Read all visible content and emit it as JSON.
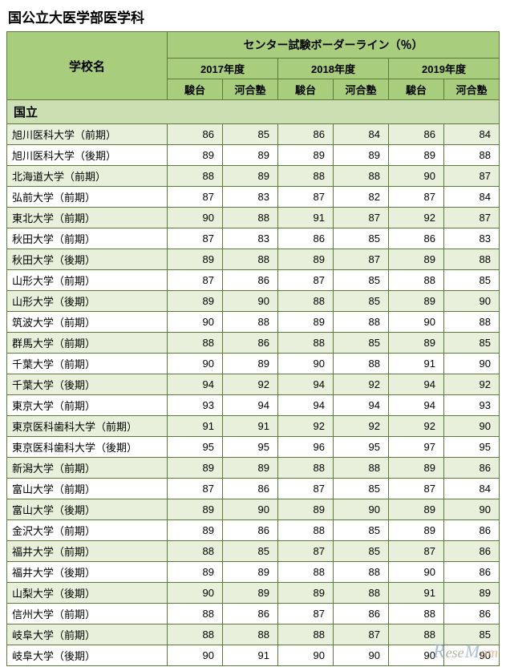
{
  "title": "国公立大医学部医学科",
  "headers": {
    "school": "学校名",
    "main": "センター試験ボーダーライン（％）",
    "years": [
      "2017年度",
      "2018年度",
      "2019年度"
    ],
    "subs": [
      "駿台",
      "河合塾"
    ]
  },
  "section_label": "国立",
  "rows": [
    {
      "name": "旭川医科大学（前期）",
      "v": [
        86,
        85,
        86,
        84,
        86,
        84
      ]
    },
    {
      "name": "旭川医科大学（後期）",
      "v": [
        89,
        89,
        89,
        89,
        89,
        88
      ]
    },
    {
      "name": "北海道大学（前期）",
      "v": [
        88,
        89,
        88,
        88,
        90,
        87
      ]
    },
    {
      "name": "弘前大学（前期）",
      "v": [
        87,
        83,
        87,
        82,
        87,
        84
      ]
    },
    {
      "name": "東北大学（前期）",
      "v": [
        90,
        88,
        91,
        87,
        92,
        87
      ]
    },
    {
      "name": "秋田大学（前期）",
      "v": [
        87,
        83,
        86,
        85,
        86,
        83
      ]
    },
    {
      "name": "秋田大学（後期）",
      "v": [
        89,
        88,
        89,
        87,
        89,
        88
      ]
    },
    {
      "name": "山形大学（前期）",
      "v": [
        87,
        86,
        87,
        85,
        88,
        85
      ]
    },
    {
      "name": "山形大学（後期）",
      "v": [
        89,
        90,
        88,
        85,
        89,
        90
      ]
    },
    {
      "name": "筑波大学（前期）",
      "v": [
        90,
        88,
        89,
        88,
        90,
        88
      ]
    },
    {
      "name": "群馬大学（前期）",
      "v": [
        88,
        86,
        88,
        85,
        89,
        85
      ]
    },
    {
      "name": "千葉大学（前期）",
      "v": [
        90,
        89,
        90,
        88,
        91,
        90
      ]
    },
    {
      "name": "千葉大学（後期）",
      "v": [
        94,
        92,
        94,
        92,
        94,
        92
      ]
    },
    {
      "name": "東京大学（前期）",
      "v": [
        93,
        94,
        94,
        94,
        94,
        93
      ]
    },
    {
      "name": "東京医科歯科大学（前期）",
      "v": [
        91,
        91,
        92,
        92,
        92,
        90
      ]
    },
    {
      "name": "東京医科歯科大学（後期）",
      "v": [
        95,
        95,
        96,
        95,
        97,
        95
      ]
    },
    {
      "name": "新潟大学（前期）",
      "v": [
        89,
        89,
        88,
        88,
        89,
        86
      ]
    },
    {
      "name": "富山大学（前期）",
      "v": [
        87,
        86,
        87,
        85,
        87,
        84
      ]
    },
    {
      "name": "富山大学（後期）",
      "v": [
        89,
        90,
        89,
        90,
        89,
        90
      ]
    },
    {
      "name": "金沢大学（前期）",
      "v": [
        89,
        86,
        88,
        85,
        89,
        86
      ]
    },
    {
      "name": "福井大学（前期）",
      "v": [
        88,
        85,
        87,
        85,
        87,
        86
      ]
    },
    {
      "name": "福井大学（後期）",
      "v": [
        89,
        89,
        88,
        88,
        90,
        86
      ]
    },
    {
      "name": "山梨大学（後期）",
      "v": [
        90,
        89,
        89,
        88,
        91,
        89
      ]
    },
    {
      "name": "信州大学（前期）",
      "v": [
        88,
        86,
        87,
        86,
        88,
        86
      ]
    },
    {
      "name": "岐阜大学（前期）",
      "v": [
        88,
        88,
        88,
        87,
        88,
        85
      ]
    },
    {
      "name": "岐阜大学（後期）",
      "v": [
        90,
        91,
        90,
        90,
        90,
        90
      ]
    }
  ],
  "watermark": {
    "brand": "ReseMom"
  },
  "style": {
    "header_bg": "#a8cd7c",
    "section_bg": "#ccdfb2",
    "row_even_bg": "#e8f0db",
    "row_odd_bg": "#ffffff",
    "border_color": "#5b7a3a"
  }
}
